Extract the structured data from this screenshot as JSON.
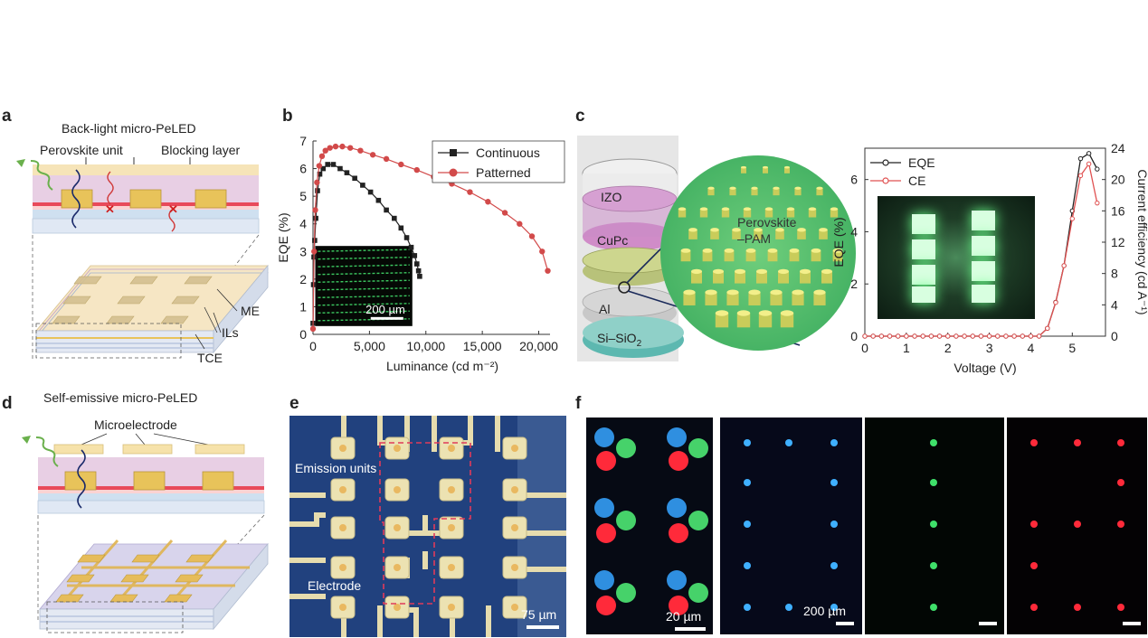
{
  "panel_labels": {
    "a": "a",
    "b": "b",
    "c": "c",
    "d": "d",
    "e": "e",
    "f": "f"
  },
  "panel_a": {
    "title": "Back-light micro-PeLED",
    "perovskite_label": "Perovskite unit",
    "blocking_label": "Blocking layer",
    "me_label": "ME",
    "ils_label": "ILs",
    "tce_label": "TCE"
  },
  "panel_c": {
    "izo": "IZO",
    "cupc": "CuPc",
    "al": "Al",
    "sisio2": "Si–SiO",
    "sisio2_sub": "2",
    "pam_line1": "Perovskite",
    "pam_line2": "–PAM"
  },
  "panel_d": {
    "title": "Self-emissive micro-PeLED",
    "microelectrode_label": "Microelectrode"
  },
  "panel_e": {
    "emission_label": "Emission units",
    "electrode_label": "Electrode",
    "scalebar": "75 µm"
  },
  "panel_f": {
    "scalebar_1": "20 µm",
    "scalebar_2": "200 µm"
  },
  "colors": {
    "series_black": "#222222",
    "series_red": "#d24a4a",
    "perovskite": "#e8c35a",
    "emission_green": "#4ce07a",
    "blue_dot": "#2f8fe0",
    "red_dot": "#ff2a3a"
  },
  "chart_data": [
    {
      "type": "line",
      "panel": "b",
      "xlabel": "Luminance (cd m⁻²)",
      "ylabel": "EQE (%)",
      "xlim": [
        0,
        21000
      ],
      "ylim": [
        0,
        7
      ],
      "xticks": [
        "0",
        "5,000",
        "10,000",
        "15,000",
        "20,000"
      ],
      "yticks": [
        "0",
        "1",
        "2",
        "3",
        "4",
        "5",
        "6",
        "7"
      ],
      "legend_placement": "top-right",
      "inset_scalebar": "200 µm",
      "series": [
        {
          "name": "Continuous",
          "color": "#222222",
          "marker": "square",
          "points": [
            [
              0,
              0.4
            ],
            [
              40,
              1.8
            ],
            [
              80,
              2.8
            ],
            [
              150,
              3.4
            ],
            [
              250,
              4.2
            ],
            [
              400,
              5.2
            ],
            [
              600,
              5.8
            ],
            [
              900,
              6.0
            ],
            [
              1300,
              6.15
            ],
            [
              1800,
              6.15
            ],
            [
              2400,
              6.0
            ],
            [
              3000,
              5.85
            ],
            [
              3700,
              5.65
            ],
            [
              4400,
              5.4
            ],
            [
              5100,
              5.15
            ],
            [
              5800,
              4.85
            ],
            [
              6500,
              4.5
            ],
            [
              7200,
              4.2
            ],
            [
              7800,
              3.85
            ],
            [
              8300,
              3.5
            ],
            [
              8700,
              3.15
            ],
            [
              9000,
              2.85
            ],
            [
              9200,
              2.55
            ],
            [
              9350,
              2.3
            ],
            [
              9450,
              2.1
            ]
          ]
        },
        {
          "name": "Patterned",
          "color": "#d24a4a",
          "marker": "circle",
          "points": [
            [
              0,
              0.2
            ],
            [
              100,
              3.0
            ],
            [
              200,
              4.5
            ],
            [
              350,
              5.5
            ],
            [
              550,
              6.1
            ],
            [
              800,
              6.45
            ],
            [
              1100,
              6.65
            ],
            [
              1500,
              6.75
            ],
            [
              2000,
              6.8
            ],
            [
              2600,
              6.8
            ],
            [
              3300,
              6.75
            ],
            [
              4200,
              6.65
            ],
            [
              5300,
              6.5
            ],
            [
              6500,
              6.35
            ],
            [
              7800,
              6.15
            ],
            [
              9200,
              5.95
            ],
            [
              10700,
              5.7
            ],
            [
              12300,
              5.45
            ],
            [
              13900,
              5.15
            ],
            [
              15500,
              4.8
            ],
            [
              17000,
              4.4
            ],
            [
              18300,
              4.0
            ],
            [
              19400,
              3.55
            ],
            [
              20300,
              3.0
            ],
            [
              20800,
              2.3
            ]
          ]
        }
      ]
    },
    {
      "type": "line",
      "panel": "c",
      "xlabel": "Voltage (V)",
      "ylabel": "EQE (%)",
      "ylabel_right": "Current efficiency (cd A⁻¹)",
      "xlim": [
        0,
        5.8
      ],
      "ylim": [
        0,
        7.2
      ],
      "ylim_right": [
        0,
        24
      ],
      "xticks": [
        "0",
        "1",
        "2",
        "3",
        "4",
        "5"
      ],
      "yticks": [
        "0",
        "2",
        "4",
        "6"
      ],
      "yticks_right": [
        "0",
        "4",
        "8",
        "12",
        "16",
        "20",
        "24"
      ],
      "legend_placement": "top-left",
      "series": [
        {
          "name": "EQE",
          "color": "#222222",
          "axis": "left",
          "points": [
            [
              0,
              0
            ],
            [
              0.2,
              0
            ],
            [
              0.4,
              0
            ],
            [
              0.6,
              0
            ],
            [
              0.8,
              0
            ],
            [
              1.0,
              0
            ],
            [
              1.2,
              0
            ],
            [
              1.4,
              0
            ],
            [
              1.6,
              0
            ],
            [
              1.8,
              0
            ],
            [
              2.0,
              0
            ],
            [
              2.2,
              0
            ],
            [
              2.4,
              0
            ],
            [
              2.6,
              0
            ],
            [
              2.8,
              0
            ],
            [
              3.0,
              0
            ],
            [
              3.2,
              0
            ],
            [
              3.4,
              0
            ],
            [
              3.6,
              0
            ],
            [
              3.8,
              0
            ],
            [
              4.0,
              0
            ],
            [
              4.2,
              0
            ],
            [
              4.4,
              0.3
            ],
            [
              4.6,
              1.3
            ],
            [
              4.8,
              2.7
            ],
            [
              5.0,
              4.8
            ],
            [
              5.2,
              6.8
            ],
            [
              5.4,
              7.0
            ],
            [
              5.6,
              6.4
            ]
          ]
        },
        {
          "name": "CE",
          "color": "#e05050",
          "axis": "right",
          "points": [
            [
              0,
              0
            ],
            [
              0.2,
              0
            ],
            [
              0.4,
              0
            ],
            [
              0.6,
              0
            ],
            [
              0.8,
              0
            ],
            [
              1.0,
              0
            ],
            [
              1.2,
              0
            ],
            [
              1.4,
              0
            ],
            [
              1.6,
              0
            ],
            [
              1.8,
              0
            ],
            [
              2.0,
              0
            ],
            [
              2.2,
              0
            ],
            [
              2.4,
              0
            ],
            [
              2.6,
              0
            ],
            [
              2.8,
              0
            ],
            [
              3.0,
              0
            ],
            [
              3.2,
              0
            ],
            [
              3.4,
              0
            ],
            [
              3.6,
              0
            ],
            [
              3.8,
              0
            ],
            [
              4.0,
              0
            ],
            [
              4.2,
              0
            ],
            [
              4.4,
              1.0
            ],
            [
              4.6,
              4.3
            ],
            [
              4.8,
              9.0
            ],
            [
              5.0,
              15.0
            ],
            [
              5.2,
              20.5
            ],
            [
              5.4,
              22.0
            ],
            [
              5.6,
              17.0
            ]
          ]
        }
      ]
    }
  ]
}
